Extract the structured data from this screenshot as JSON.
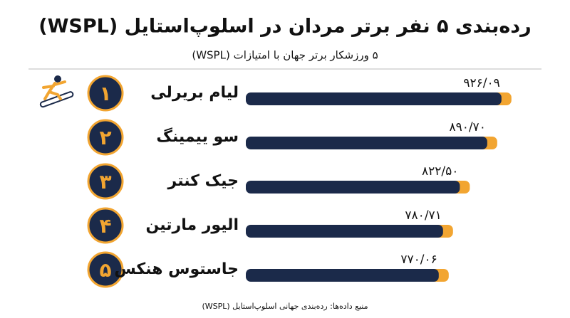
{
  "chart_data": {
    "type": "bar",
    "title": "رده‌بندی ۵ نفر برتر مردان در اسلوپ‌استایل (WSPL)",
    "subtitle": "۵ ورزشکار برتر جهان با امتیازات (WSPL)",
    "source": "منبع داده‌ها: رده‌بندی جهانی اسلوپ‌استایل (WSPL)",
    "categories": [
      "لیام بریرلی",
      "سو ییمینگ",
      "جیک کنتر",
      "الیور مارتین",
      "جاستوس هنکس"
    ],
    "ranks": [
      "۱",
      "۲",
      "۳",
      "۴",
      "۵"
    ],
    "values": [
      926.09,
      890.7,
      822.5,
      780.71,
      770.06
    ],
    "value_labels": [
      "۹۲۶/۰۹",
      "۸۹۰/۷۰",
      "۸۲۲/۵۰",
      "۷۸۰/۷۱",
      "۷۷۰/۰۶"
    ],
    "color": "#1b2a4a",
    "accent": "#f2a531",
    "xlim": [
      265,
      930
    ]
  }
}
